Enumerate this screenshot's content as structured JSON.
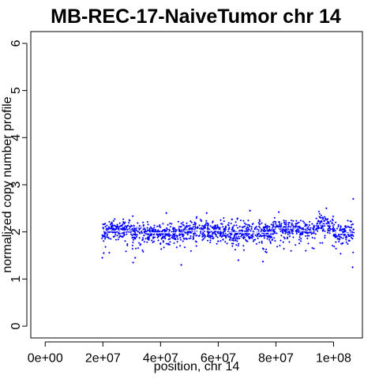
{
  "chart_data": {
    "type": "scatter",
    "title": "MB-REC-17-NaiveTumor chr 14",
    "xlabel": "position, chr 14",
    "ylabel": "normalized copy number profile",
    "xlim": [
      -5000000,
      110000000
    ],
    "ylim": [
      -0.25,
      6.25
    ],
    "x_ticks": [
      0,
      20000000,
      40000000,
      60000000,
      80000000,
      100000000
    ],
    "x_tick_labels": [
      "0e+00",
      "2e+07",
      "4e+07",
      "6e+07",
      "8e+07",
      "1e+08"
    ],
    "y_ticks": [
      0,
      1,
      2,
      3,
      4,
      5,
      6
    ],
    "y_tick_labels": [
      "0",
      "1",
      "2",
      "3",
      "4",
      "5",
      "6"
    ],
    "point_color": "#0000ff",
    "segment_color": "#ffffff",
    "segments": [
      {
        "x0": 19500000,
        "x1": 30000000,
        "y": 2.02
      },
      {
        "x0": 30000000,
        "x1": 35000000,
        "y": 2.1
      },
      {
        "x0": 35000000,
        "x1": 48000000,
        "y": 1.98
      },
      {
        "x0": 48000000,
        "x1": 62000000,
        "y": 2.03
      },
      {
        "x0": 62000000,
        "x1": 79000000,
        "y": 1.99
      },
      {
        "x0": 79000000,
        "x1": 88000000,
        "y": 2.08
      },
      {
        "x0": 88000000,
        "x1": 94000000,
        "y": 2.02
      },
      {
        "x0": 94000000,
        "x1": 100000000,
        "y": 2.15
      },
      {
        "x0": 100000000,
        "x1": 107000000,
        "y": 1.97
      }
    ],
    "density": [
      {
        "x0": 19500000,
        "x1": 21000000,
        "center": 2.0,
        "spread": 0.22
      },
      {
        "x0": 21000000,
        "x1": 30000000,
        "center": 2.05,
        "spread": 0.18
      },
      {
        "x0": 30000000,
        "x1": 35000000,
        "center": 2.0,
        "spread": 0.25
      },
      {
        "x0": 35000000,
        "x1": 48000000,
        "center": 1.98,
        "spread": 0.18
      },
      {
        "x0": 48000000,
        "x1": 62000000,
        "center": 2.03,
        "spread": 0.2
      },
      {
        "x0": 62000000,
        "x1": 79000000,
        "center": 1.99,
        "spread": 0.22
      },
      {
        "x0": 79000000,
        "x1": 88000000,
        "center": 2.08,
        "spread": 0.16
      },
      {
        "x0": 88000000,
        "x1": 94000000,
        "center": 2.02,
        "spread": 0.17
      },
      {
        "x0": 94000000,
        "x1": 100000000,
        "center": 2.15,
        "spread": 0.16
      },
      {
        "x0": 100000000,
        "x1": 107000000,
        "center": 1.97,
        "spread": 0.2
      }
    ],
    "outliers": [
      {
        "x": 19800000,
        "y": 1.45
      },
      {
        "x": 20300000,
        "y": 1.55
      },
      {
        "x": 30500000,
        "y": 1.35
      },
      {
        "x": 31200000,
        "y": 1.45
      },
      {
        "x": 42000000,
        "y": 2.4
      },
      {
        "x": 47200000,
        "y": 1.3
      },
      {
        "x": 56000000,
        "y": 2.4
      },
      {
        "x": 67000000,
        "y": 1.4
      },
      {
        "x": 71000000,
        "y": 2.45
      },
      {
        "x": 75500000,
        "y": 1.37
      },
      {
        "x": 81000000,
        "y": 2.42
      },
      {
        "x": 97500000,
        "y": 2.5
      },
      {
        "x": 106800000,
        "y": 2.7
      },
      {
        "x": 106600000,
        "y": 1.25
      }
    ]
  }
}
